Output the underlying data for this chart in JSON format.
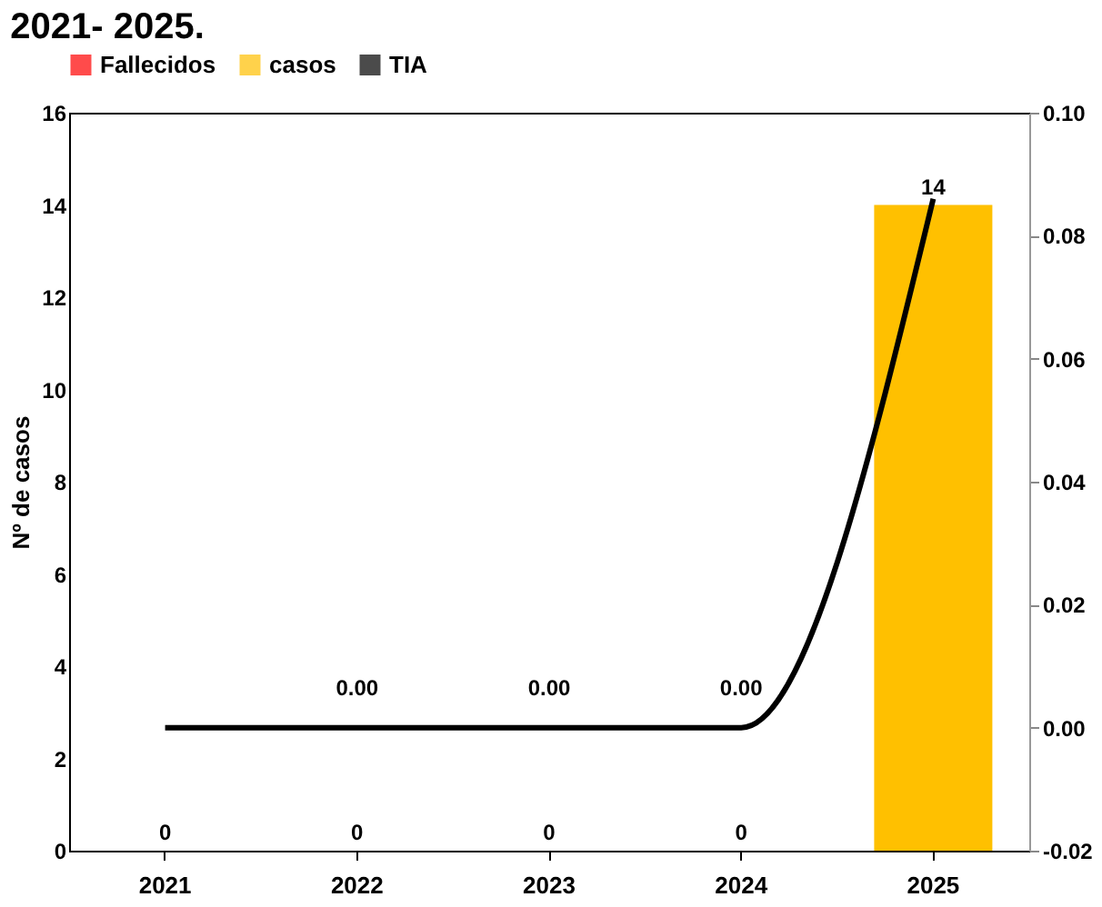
{
  "chart_data": {
    "type": "bar",
    "title": "2021- 2025.",
    "categories": [
      "2021",
      "2022",
      "2023",
      "2024",
      "2025"
    ],
    "ylabel": "Nº de casos",
    "series": [
      {
        "name": "Fallecidos",
        "type": "scatter",
        "color": "#ff0000",
        "values": [
          null,
          null,
          null,
          null,
          null
        ]
      },
      {
        "name": "casos",
        "color": "#ffc000",
        "values": [
          0,
          0,
          0,
          0,
          14
        ],
        "value_labels": [
          "0",
          "0",
          "0",
          "0",
          "14"
        ]
      },
      {
        "name": "TIA",
        "type": "line",
        "axis": "y2",
        "color": "#000000",
        "values": [
          0,
          0,
          0,
          0,
          0.086
        ],
        "value_labels": [
          null,
          "0.00",
          "0.00",
          "0.00",
          null
        ]
      }
    ],
    "ylim": [
      0,
      16
    ],
    "yticks": [
      0,
      2,
      4,
      6,
      8,
      10,
      12,
      14,
      16
    ],
    "y2lim": [
      -0.02,
      0.1
    ],
    "y2ticks": [
      {
        "value": -0.02,
        "label": "-0.02"
      },
      {
        "value": 0,
        "label": "0.00"
      },
      {
        "value": 0.02,
        "label": "0.02"
      },
      {
        "value": 0.04,
        "label": "0.04"
      },
      {
        "value": 0.06,
        "label": "0.06"
      },
      {
        "value": 0.08,
        "label": "0.08"
      },
      {
        "value": 0.1,
        "label": "0.10"
      }
    ],
    "legend": "top",
    "grid": false
  }
}
